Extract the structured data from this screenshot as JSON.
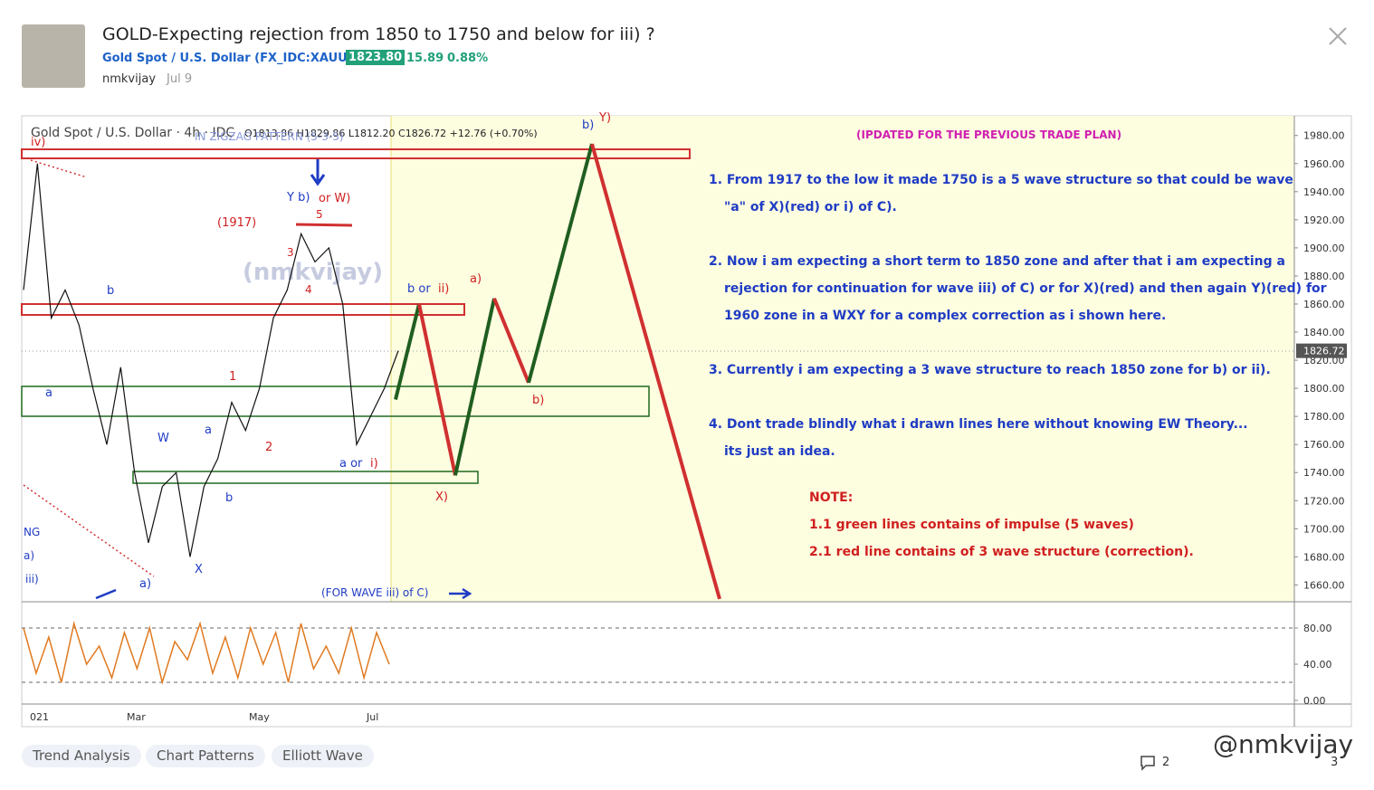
{
  "header": {
    "title": "GOLD-Expecting rejection from 1850 to 1750 and below for iii) ?",
    "symbol": "Gold Spot / U.S. Dollar (FX_IDC:XAUUSD)",
    "price": "1823.80",
    "change": "15.89",
    "change_pct": "0.88%",
    "author": "nmkvijay",
    "date": "Jul 9"
  },
  "chart": {
    "legend_symbol": "Gold Spot / U.S. Dollar · 4h · IDC",
    "ohlc": "O1813.86 H1829.86 L1812.20 C1826.72 +12.76 (+0.70%)",
    "watermark": "(nmkvijay)",
    "ylim": [
      1648,
      1994
    ],
    "yticks": [
      {
        "value": 1980,
        "label": "1980.00"
      },
      {
        "value": 1960,
        "label": "1960.00"
      },
      {
        "value": 1940,
        "label": "1940.00"
      },
      {
        "value": 1920,
        "label": "1920.00"
      },
      {
        "value": 1900,
        "label": "1900.00"
      },
      {
        "value": 1880,
        "label": "1880.00"
      },
      {
        "value": 1860,
        "label": "1860.00"
      },
      {
        "value": 1840,
        "label": "1840.00"
      },
      {
        "value": 1820,
        "label": "1820.00"
      },
      {
        "value": 1800,
        "label": "1800.00"
      },
      {
        "value": 1780,
        "label": "1780.00"
      },
      {
        "value": 1760,
        "label": "1760.00"
      },
      {
        "value": 1740,
        "label": "1740.00"
      },
      {
        "value": 1720,
        "label": "1720.00"
      },
      {
        "value": 1700,
        "label": "1700.00"
      },
      {
        "value": 1680,
        "label": "1680.00"
      },
      {
        "value": 1660,
        "label": "1660.00"
      }
    ],
    "last_price": {
      "value": 1826.72,
      "label": "1826.72"
    },
    "price_path": [
      1870,
      1960,
      1850,
      1870,
      1845,
      1800,
      1760,
      1815,
      1740,
      1690,
      1730,
      1740,
      1680,
      1730,
      1750,
      1790,
      1770,
      1800,
      1850,
      1870,
      1910,
      1890,
      1900,
      1860,
      1760,
      1780,
      1800,
      1826.72
    ],
    "projection_path": [
      1792,
      1860,
      1738,
      1864,
      1804,
      1974,
      1650
    ],
    "osc_ylim": [
      -4,
      107
    ],
    "osc_ticks": [
      {
        "value": 80,
        "label": "80.00"
      },
      {
        "value": 40,
        "label": "40.00"
      },
      {
        "value": 0,
        "label": "0.00"
      }
    ],
    "osc_values": [
      80,
      30,
      70,
      20,
      85,
      40,
      60,
      25,
      75,
      35,
      80,
      20,
      65,
      45,
      85,
      30,
      70,
      25,
      80,
      40,
      75,
      20,
      85,
      35,
      60,
      30,
      80,
      25,
      75,
      40
    ],
    "x_labels": [
      "021",
      "Mar",
      "May",
      "Jul"
    ],
    "annotations": [
      "iv)",
      "IN ZIGZAG PATTERN (5-3-5)",
      "Y b)",
      "or W)",
      "5",
      "(1917)",
      "3",
      "4",
      "b",
      "b or",
      "ii)",
      "a)",
      "b)",
      "Y)",
      "a",
      "1",
      "W",
      "a",
      "2",
      "b",
      "a or",
      "i)",
      "b)",
      "X)",
      "X",
      "a)",
      "(FOR WAVE iii) of C)",
      "NG",
      "a)",
      "iii)"
    ],
    "notes": {
      "heading": "(IPDATED FOR THE PREVIOUS TRADE PLAN)",
      "lines": [
        "1. From 1917 to the low it made 1750 is a 5 wave structure so that could be wave",
        "\"a\" of X)(red) or i) of C).",
        "2. Now i am expecting a short term to 1850 zone and after that i am expecting a",
        "rejection for continuation for wave iii) of C) or for X)(red) and then again Y)(red) for",
        "1960 zone in a WXY for a complex correction as i shown here.",
        "3. Currently i am expecting a 3 wave structure to reach 1850 zone for b) or ii).",
        "4. Dont trade blindly what i drawn lines here without knowing EW Theory...",
        "its just an idea."
      ],
      "note_title": "NOTE:",
      "note_lines": [
        "1.1 green lines contains of impulse (5 waves)",
        "2.1 red line contains of 3 wave structure (correction)."
      ]
    }
  },
  "tags": [
    "Trend Analysis",
    "Chart Patterns",
    "Elliott Wave"
  ],
  "footer": {
    "comments": "2",
    "boosts": "3",
    "watermark": "@nmkvijay"
  }
}
